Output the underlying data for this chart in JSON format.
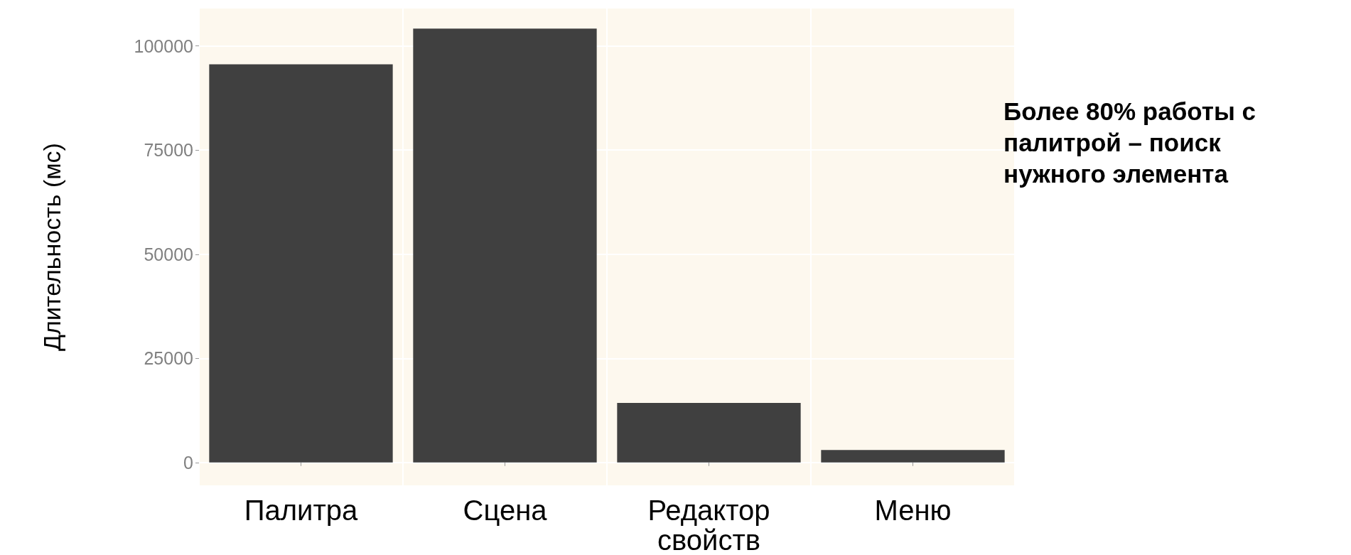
{
  "chart_data": {
    "type": "bar",
    "ylabel": "Длительность (мс)",
    "categories": [
      "Палитра",
      "Сцена",
      "Редактор свойств",
      "Меню"
    ],
    "values": [
      95600,
      104200,
      14300,
      3000
    ],
    "color": "#404040",
    "ylim": [
      -5500,
      109000
    ],
    "yticks": [
      0,
      25000,
      50000,
      75000,
      100000
    ],
    "grid": true,
    "annotations": [
      "Более 80% работы с палитрой – поиск нужного элемента"
    ]
  }
}
